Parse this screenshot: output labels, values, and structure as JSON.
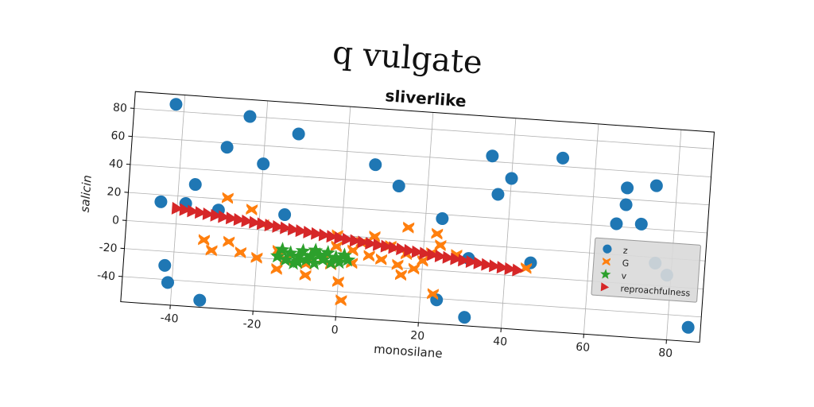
{
  "suptitle": "q vulgate",
  "chart_data": {
    "type": "scatter",
    "title": "sliverlike",
    "xlabel": "monosilane",
    "ylabel": "salicin",
    "xlim": [
      -52,
      88
    ],
    "ylim": [
      -58,
      92
    ],
    "xticks": [
      -40,
      -20,
      0,
      20,
      40,
      60,
      80
    ],
    "yticks": [
      -40,
      -20,
      0,
      20,
      40,
      60,
      80
    ],
    "grid": true,
    "legend": "right",
    "series": [
      {
        "name": "z",
        "marker": "circle",
        "color": "#1f77b4",
        "points": [
          [
            -42,
            85
          ],
          [
            -24,
            80
          ],
          [
            -12,
            70
          ],
          [
            -29,
            57
          ],
          [
            -20,
            47
          ],
          [
            -36,
            29
          ],
          [
            -44,
            15
          ],
          [
            -38,
            15
          ],
          [
            -30,
            12
          ],
          [
            -14,
            12
          ],
          [
            7,
            52
          ],
          [
            13,
            38
          ],
          [
            24,
            17
          ],
          [
            35,
            64
          ],
          [
            37,
            37
          ],
          [
            40,
            49
          ],
          [
            52,
            66
          ],
          [
            66,
            22
          ],
          [
            68,
            36
          ],
          [
            68,
            48
          ],
          [
            72,
            23
          ],
          [
            75,
            51
          ],
          [
            76,
            -4
          ],
          [
            79,
            -12
          ],
          [
            85,
            -48
          ],
          [
            46,
            -10
          ],
          [
            31,
            -10
          ],
          [
            24,
            -41
          ],
          [
            31,
            -52
          ],
          [
            -33,
            -53
          ],
          [
            -41,
            -42
          ],
          [
            -42,
            -30
          ]
        ]
      },
      {
        "name": "G",
        "marker": "x",
        "color": "#ff7f0e",
        "points": [
          [
            -28,
            21
          ],
          [
            -22,
            14
          ],
          [
            -33,
            -10
          ],
          [
            -31,
            -17
          ],
          [
            -27,
            -10
          ],
          [
            -24,
            -17
          ],
          [
            -20,
            -20
          ],
          [
            -19,
            4
          ],
          [
            -15,
            -27
          ],
          [
            -15,
            -14
          ],
          [
            -13,
            -20
          ],
          [
            -8,
            -30
          ],
          [
            -8,
            -22
          ],
          [
            -6,
            -14
          ],
          [
            -4,
            -18
          ],
          [
            -2,
            -21
          ],
          [
            -1,
            -8
          ],
          [
            -1,
            0
          ],
          [
            0,
            -33
          ],
          [
            1,
            -46
          ],
          [
            3,
            -10
          ],
          [
            3,
            -19
          ],
          [
            5,
            -4
          ],
          [
            7,
            -13
          ],
          [
            8,
            1
          ],
          [
            10,
            -15
          ],
          [
            12,
            -5
          ],
          [
            14,
            -18
          ],
          [
            15,
            -25
          ],
          [
            16,
            -10
          ],
          [
            16,
            9
          ],
          [
            18,
            -20
          ],
          [
            20,
            -14
          ],
          [
            22,
            -8
          ],
          [
            23,
            -37
          ],
          [
            23,
            6
          ],
          [
            24,
            -2
          ],
          [
            28,
            -8
          ],
          [
            45,
            -14
          ]
        ]
      },
      {
        "name": "v",
        "marker": "star",
        "color": "#2ca02c",
        "points": [
          [
            -15,
            -18
          ],
          [
            -13,
            -20
          ],
          [
            -12,
            -15
          ],
          [
            -11,
            -22
          ],
          [
            -10,
            -17
          ],
          [
            -9,
            -13
          ],
          [
            -8,
            -19
          ],
          [
            -7,
            -16
          ],
          [
            -6,
            -21
          ],
          [
            -5,
            -15
          ],
          [
            -4,
            -18
          ],
          [
            -3,
            -13
          ],
          [
            -2,
            -20
          ],
          [
            -1,
            -16
          ],
          [
            0,
            -19
          ],
          [
            1,
            -14
          ],
          [
            2,
            -17
          ],
          [
            -14,
            -13
          ],
          [
            -10,
            -21
          ],
          [
            -6,
            -12
          ]
        ]
      },
      {
        "name": "reproachfulness",
        "marker": "triangle-right",
        "color": "#d62728",
        "line": {
          "x0": -40,
          "y0": 11,
          "x1": 43,
          "y1": -16,
          "count": 45
        }
      }
    ]
  }
}
